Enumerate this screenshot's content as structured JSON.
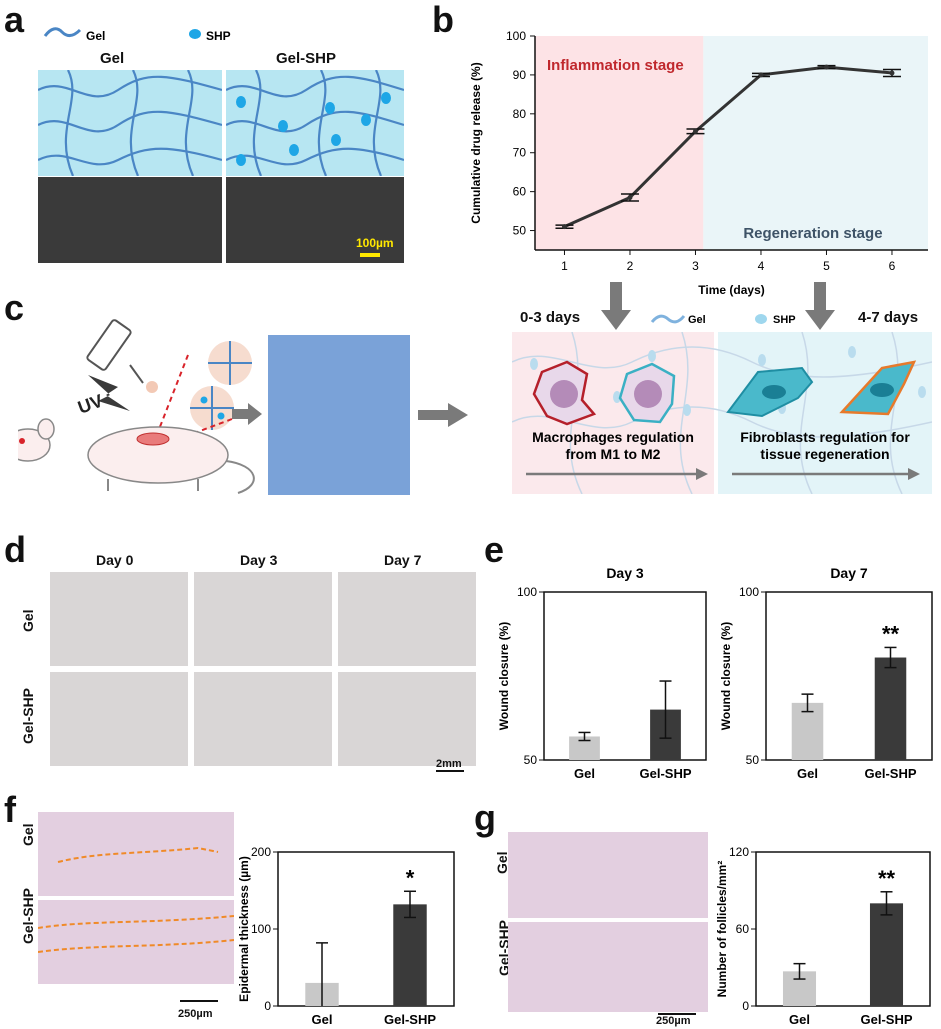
{
  "panels": {
    "a": {
      "letter": "a",
      "legend": {
        "gel": "Gel",
        "shp": "SHP"
      },
      "titles": [
        "Gel",
        "Gel-SHP"
      ],
      "scale_bar": "100µm",
      "colors": {
        "gel_line": "#4a86c5",
        "shp_dot": "#1ea6e6",
        "hydrogel_bg": "#b7e6f2",
        "scale": "#ffe800"
      }
    },
    "b": {
      "letter": "b",
      "stage1": "Inflammation stage",
      "stage2": "Regeneration stage",
      "colors": {
        "stage1_bg": "#fde3e6",
        "stage2_bg": "#eaf5f8",
        "stage1_text": "#c0282d",
        "stage2_text": "#3e5367"
      }
    },
    "c": {
      "letter": "c",
      "uv": "UV",
      "days1": "0-3 days",
      "days2": "4-7 days",
      "legend": {
        "gel": "Gel",
        "shp": "SHP"
      },
      "text1": [
        "Macrophages regulation",
        "from M1 to M2"
      ],
      "text2": [
        "Fibroblasts regulation for",
        "tissue regeneration"
      ]
    },
    "d": {
      "letter": "d",
      "days": [
        "Day 0",
        "Day 3",
        "Day 7"
      ],
      "rows": [
        "Gel",
        "Gel-SHP"
      ],
      "scale_bar": "2mm"
    },
    "e": {
      "letter": "e"
    },
    "f": {
      "letter": "f",
      "rows": [
        "Gel",
        "Gel-SHP"
      ],
      "scale_bar": "250µm"
    },
    "g": {
      "letter": "g",
      "rows": [
        "Gel",
        "Gel-SHP"
      ],
      "scale_bar": "250µm"
    }
  },
  "chart_data": [
    {
      "id": "b",
      "type": "line",
      "x": [
        1,
        2,
        3,
        4,
        5,
        6
      ],
      "values": [
        51,
        58.5,
        75.5,
        90,
        92,
        90.5
      ],
      "errors": [
        0.4,
        0.9,
        0.6,
        0.4,
        0.4,
        0.9
      ],
      "xlabel": "Time (days)",
      "ylabel": "Cumulative drug release (%)",
      "ylim": [
        45,
        100
      ],
      "yticks": [
        50,
        60,
        70,
        80,
        90,
        100
      ],
      "line_color": "#333333"
    },
    {
      "id": "e-day3",
      "type": "bar",
      "title": "Day 3",
      "categories": [
        "Gel",
        "Gel-SHP"
      ],
      "values": [
        57,
        65
      ],
      "errors": [
        1.2,
        8.5
      ],
      "ylabel": "Wound closure (%)",
      "ylim": [
        50,
        100
      ],
      "yticks": [
        50,
        100
      ],
      "significance": [
        "",
        ""
      ],
      "colors": [
        "#c8c8c8",
        "#3a3a3a"
      ]
    },
    {
      "id": "e-day7",
      "type": "bar",
      "title": "Day 7",
      "categories": [
        "Gel",
        "Gel-SHP"
      ],
      "values": [
        67,
        80.5
      ],
      "errors": [
        2.6,
        3.0
      ],
      "ylabel": "Wound closure (%)",
      "ylim": [
        50,
        100
      ],
      "yticks": [
        50,
        100
      ],
      "significance": [
        "",
        "**"
      ],
      "colors": [
        "#c8c8c8",
        "#3a3a3a"
      ]
    },
    {
      "id": "f",
      "type": "bar",
      "categories": [
        "Gel",
        "Gel-SHP"
      ],
      "values": [
        30,
        132
      ],
      "errors": [
        52,
        17
      ],
      "ylabel": "Epidermal  thickness (µm)",
      "ylim": [
        0,
        200
      ],
      "yticks": [
        0,
        100,
        200
      ],
      "significance": [
        "",
        "*"
      ],
      "colors": [
        "#c8c8c8",
        "#3a3a3a"
      ]
    },
    {
      "id": "g",
      "type": "bar",
      "categories": [
        "Gel",
        "Gel-SHP"
      ],
      "values": [
        27,
        80
      ],
      "errors": [
        6,
        9
      ],
      "ylabel": "Number of follicles/mm²",
      "ylim": [
        0,
        120
      ],
      "yticks": [
        0,
        60,
        120
      ],
      "significance": [
        "",
        "**"
      ],
      "colors": [
        "#c8c8c8",
        "#3a3a3a"
      ]
    }
  ]
}
